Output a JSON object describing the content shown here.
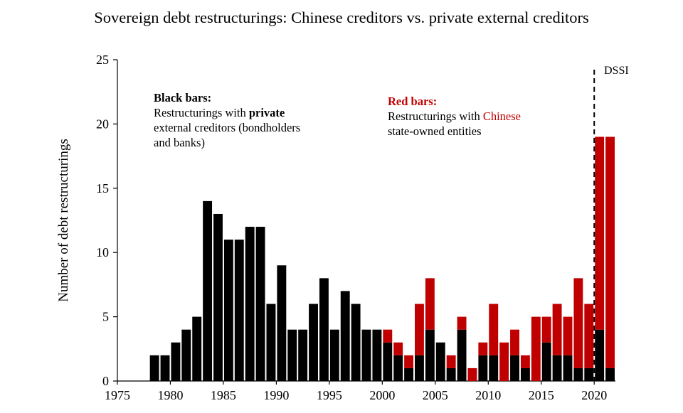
{
  "chart_data": {
    "type": "bar",
    "title": "Sovereign debt restructurings: Chinese creditors vs. private external creditors",
    "ylabel": "Number of debt restructurings",
    "xlabel": "",
    "ylim": [
      0,
      25
    ],
    "xlim": [
      1975,
      2021
    ],
    "yticks": [
      "0",
      "5",
      "10",
      "15",
      "20",
      "25"
    ],
    "xticks": [
      "1975",
      "1980",
      "1985",
      "1990",
      "1995",
      "2000",
      "2005",
      "2010",
      "2015",
      "2020"
    ],
    "stacked": true,
    "years": [
      1978,
      1979,
      1980,
      1981,
      1982,
      1983,
      1984,
      1985,
      1986,
      1987,
      1988,
      1989,
      1990,
      1991,
      1992,
      1993,
      1994,
      1995,
      1996,
      1997,
      1998,
      1999,
      2000,
      2001,
      2002,
      2003,
      2004,
      2005,
      2006,
      2007,
      2008,
      2009,
      2010,
      2011,
      2012,
      2013,
      2014,
      2015,
      2016,
      2017,
      2018,
      2019,
      2020,
      2021
    ],
    "series": [
      {
        "key": "private",
        "color": "#000000",
        "values": [
          2,
          2,
          3,
          4,
          5,
          14,
          13,
          11,
          11,
          12,
          12,
          6,
          9,
          4,
          4,
          6,
          8,
          4,
          7,
          6,
          4,
          4,
          3,
          2,
          1,
          2,
          4,
          3,
          1,
          4,
          0,
          2,
          2,
          0,
          2,
          1,
          0,
          3,
          2,
          2,
          1,
          1,
          4,
          1
        ]
      },
      {
        "key": "chinese",
        "color": "#c00000",
        "values": [
          0,
          0,
          0,
          0,
          0,
          0,
          0,
          0,
          0,
          0,
          0,
          0,
          0,
          0,
          0,
          0,
          0,
          0,
          0,
          0,
          0,
          0,
          1,
          1,
          1,
          4,
          4,
          0,
          1,
          1,
          1,
          1,
          4,
          3,
          2,
          1,
          5,
          2,
          4,
          3,
          7,
          5,
          15,
          18
        ]
      }
    ],
    "annotations": {
      "black": {
        "head": "Black bars:",
        "line1_pre": "Restructurings with ",
        "line1_bold": "private",
        "line2": "external creditors (bondholders",
        "line3": "and banks)"
      },
      "red": {
        "head": "Red bars:",
        "line1_pre": "Restructurings with ",
        "line1_red": "Chinese",
        "line2": "state-owned entities"
      },
      "marker": {
        "label": "DSSI",
        "x": 2020
      }
    }
  }
}
